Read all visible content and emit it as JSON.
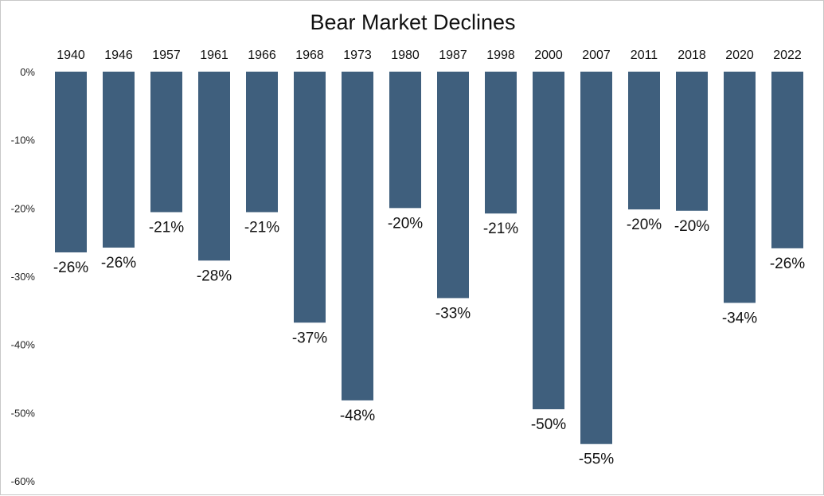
{
  "chart_data": {
    "type": "bar",
    "title": "Bear Market Declines",
    "xlabel": "",
    "ylabel": "",
    "categories": [
      "1940",
      "1946",
      "1957",
      "1961",
      "1966",
      "1968",
      "1973",
      "1980",
      "1987",
      "1998",
      "2000",
      "2007",
      "2011",
      "2018",
      "2020",
      "2022"
    ],
    "values": [
      -26.5,
      -25.8,
      -20.6,
      -27.7,
      -20.6,
      -36.8,
      -48.2,
      -20.0,
      -33.2,
      -20.8,
      -49.5,
      -54.6,
      -20.2,
      -20.4,
      -33.9,
      -25.9
    ],
    "data_labels": [
      "-26%",
      "-26%",
      "-21%",
      "-28%",
      "-21%",
      "-37%",
      "-48%",
      "-20%",
      "-33%",
      "-21%",
      "-50%",
      "-55%",
      "-20%",
      "-20%",
      "-34%",
      "-26%"
    ],
    "ylim": [
      -60,
      0
    ],
    "yticks": [
      0,
      -10,
      -20,
      -30,
      -40,
      -50,
      -60
    ],
    "ytick_labels": [
      "0%",
      "-10%",
      "-20%",
      "-30%",
      "-40%",
      "-50%",
      "-60%"
    ],
    "category_axis_position": "top",
    "grid": false,
    "legend": "none",
    "bar_color": "#3f5f7d"
  }
}
